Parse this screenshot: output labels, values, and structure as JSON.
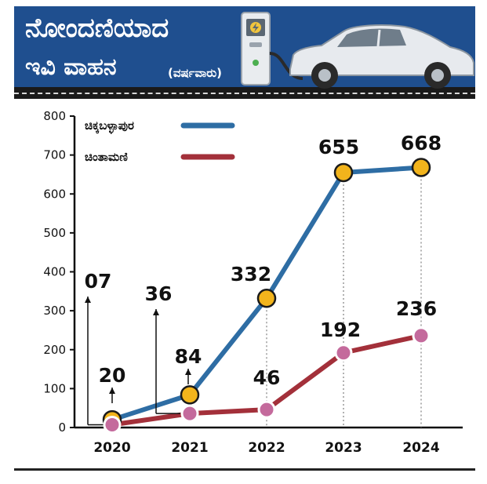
{
  "banner": {
    "title_line1": "ನೋಂದಣಿಯಾದ",
    "title_line2": "ಇವಿ ವಾಹನ",
    "subtitle": "(ವರ್ಷವಾರು)",
    "background_color": "#1f4f8f",
    "icons": [
      "ev-charger-icon",
      "car-icon"
    ]
  },
  "chart_data": {
    "type": "line",
    "title": "",
    "xlabel": "",
    "ylabel": "",
    "categories": [
      "2020",
      "2021",
      "2022",
      "2023",
      "2024"
    ],
    "ylim": [
      0,
      800
    ],
    "yticks": [
      0,
      100,
      200,
      300,
      400,
      500,
      600,
      700,
      800
    ],
    "grid": false,
    "legend_position": "top-left",
    "series": [
      {
        "name": "ಚಿಕ್ಕಬಳ್ಳಾಪುರ",
        "color": "#2e6da4",
        "marker_color": "#f2b41c",
        "values": [
          20,
          84,
          332,
          655,
          668
        ],
        "labels": [
          "20",
          "84",
          "332",
          "655",
          "668"
        ]
      },
      {
        "name": "ಚಿಂತಾಮಣಿ",
        "color": "#a3303a",
        "marker_color": "#c46a9c",
        "values": [
          7,
          36,
          46,
          192,
          236
        ],
        "labels": [
          "07",
          "36",
          "46",
          "192",
          "236"
        ]
      }
    ]
  }
}
